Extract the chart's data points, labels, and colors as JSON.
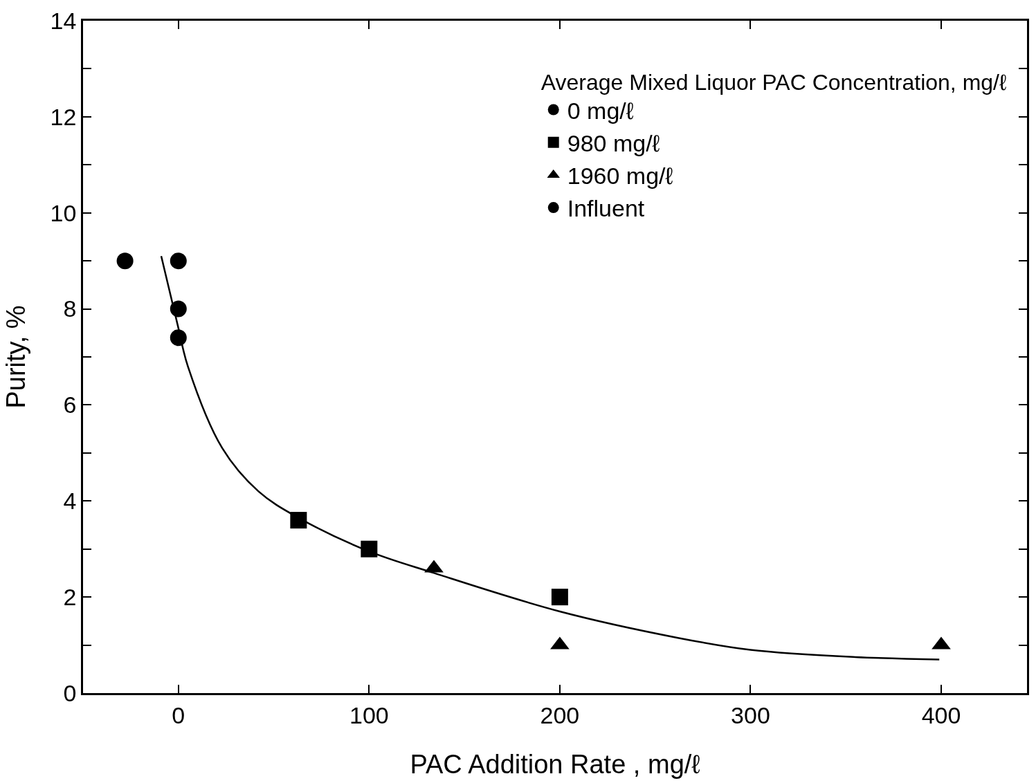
{
  "chart_data": {
    "type": "scatter",
    "xlabel": "PAC Addition Rate , mg/ℓ",
    "ylabel": "Purity, %",
    "legend_title": "Average Mixed Liquor PAC Concentration, mg/ℓ",
    "xlim": [
      -50,
      445
    ],
    "xticks": [
      0,
      100,
      200,
      300,
      400
    ],
    "ylim": [
      0,
      14
    ],
    "yticks": [
      0,
      {
        "value": 1,
        "label": null
      },
      2,
      {
        "value": 3,
        "label": null
      },
      4,
      {
        "value": 5,
        "label": null
      },
      6,
      {
        "value": 7,
        "label": null
      },
      8,
      {
        "value": 9,
        "label": null
      },
      10,
      {
        "value": 11,
        "label": null
      },
      12,
      {
        "value": 13,
        "label": null
      },
      14
    ],
    "legend": "top right",
    "series": [
      {
        "name": "0 mg/ℓ",
        "color": "#000000",
        "marker": "circle",
        "x": [
          0,
          0,
          0
        ],
        "values": [
          9.0,
          8.0,
          7.4
        ]
      },
      {
        "name": "980 mg/ℓ",
        "color": "#000000",
        "marker": "square",
        "x": [
          63,
          100,
          200
        ],
        "values": [
          3.6,
          3.0,
          2.0
        ]
      },
      {
        "name": "1960 mg/ℓ",
        "color": "#000000",
        "marker": "triangle",
        "x": [
          134,
          200,
          400
        ],
        "values": [
          2.6,
          1.0,
          1.0
        ]
      },
      {
        "name": "Influent",
        "color": "#000000",
        "marker": "circle",
        "x": [
          -28
        ],
        "values": [
          9.0
        ]
      },
      {
        "type": "line",
        "color": "#000000",
        "marker": "none",
        "line_style": "solid",
        "x": [
          -9,
          0,
          5,
          23,
          42,
          63,
          100,
          134,
          200,
          262,
          300,
          355,
          399
        ],
        "values": [
          9.1,
          7.6,
          6.8,
          5.1,
          4.2,
          3.65,
          2.95,
          2.5,
          1.7,
          1.15,
          0.9,
          0.75,
          0.7
        ]
      }
    ]
  }
}
